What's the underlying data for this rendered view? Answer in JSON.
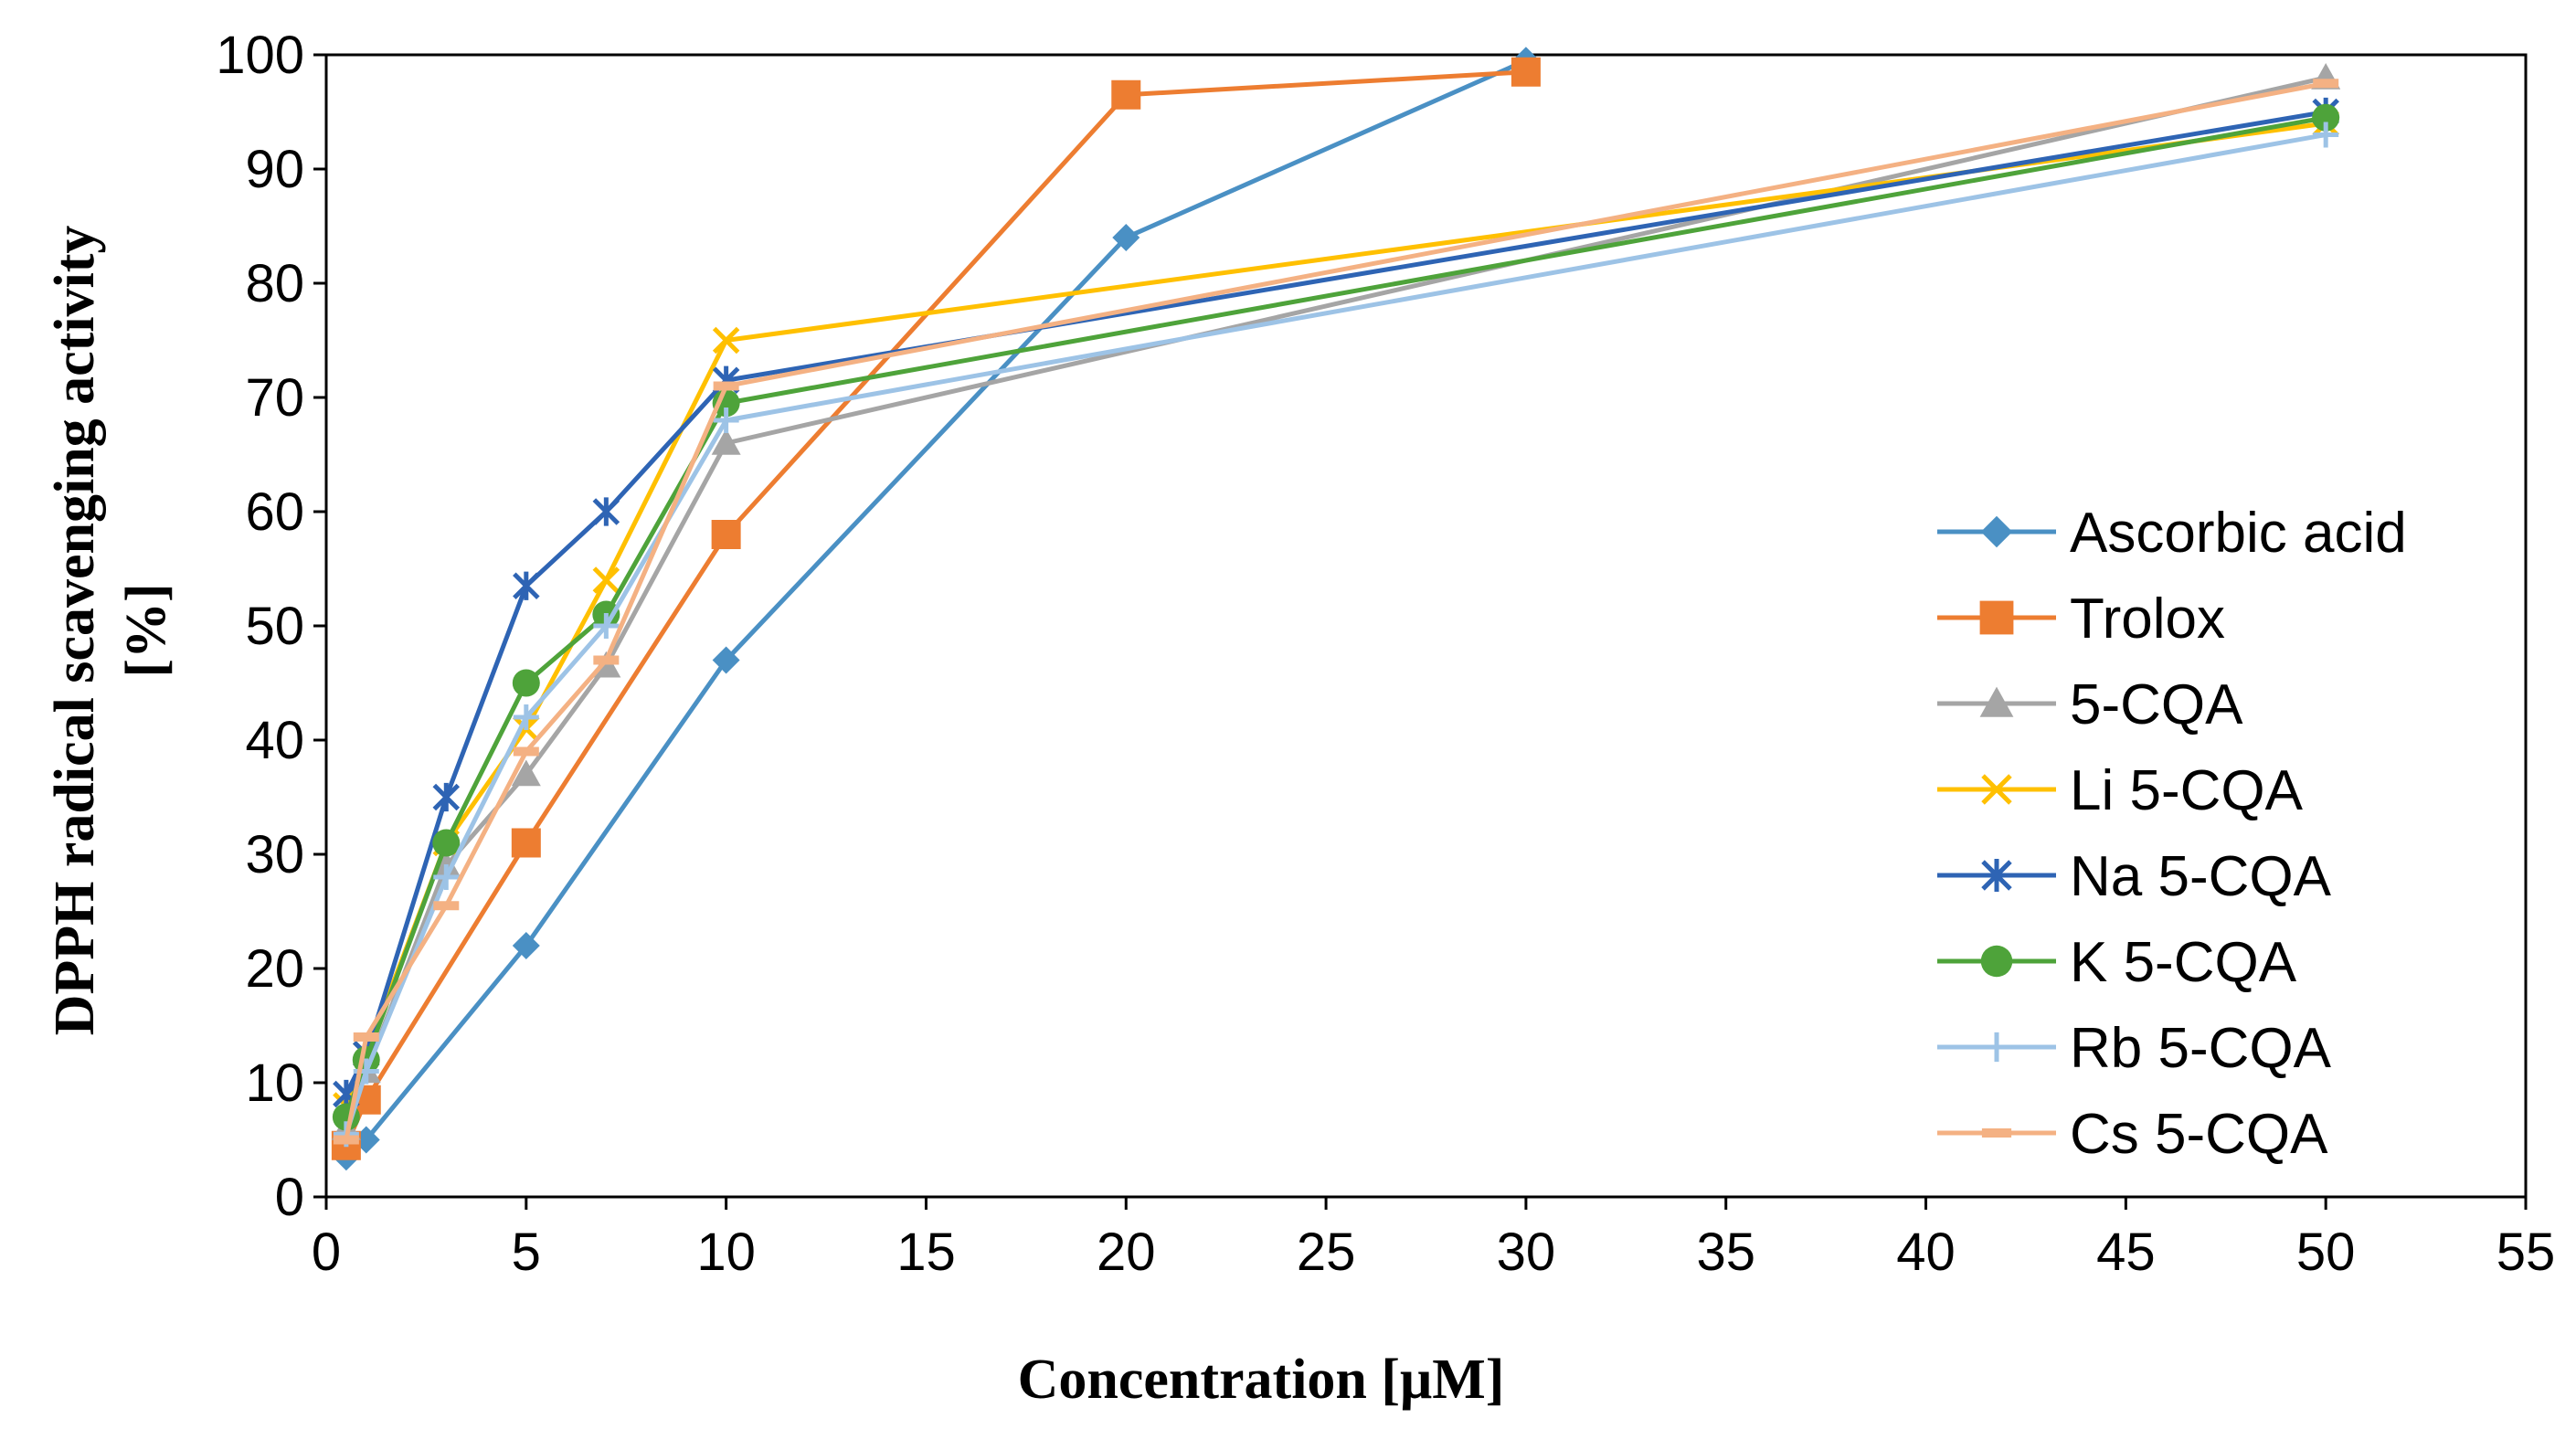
{
  "chart_data": {
    "type": "line",
    "title": "",
    "xlabel": "Concentration [μM]",
    "ylabel_lines": [
      "DPPH radical scavenging activity",
      "[%]"
    ],
    "xlim": [
      0,
      55
    ],
    "ylim": [
      0,
      100
    ],
    "xticks": [
      0,
      5,
      10,
      15,
      20,
      25,
      30,
      35,
      40,
      45,
      50,
      55
    ],
    "yticks": [
      0,
      10,
      20,
      30,
      40,
      50,
      60,
      70,
      80,
      90,
      100
    ],
    "grid": false,
    "legend_position": "right",
    "series": [
      {
        "name": "Ascorbic acid",
        "color": "#4a90c4",
        "marker": "diamond",
        "x": [
          0.5,
          1,
          5,
          10,
          20,
          30
        ],
        "y": [
          3.5,
          5,
          22,
          47,
          84,
          99.5
        ]
      },
      {
        "name": "Trolox",
        "color": "#ed7d31",
        "marker": "square",
        "x": [
          0.5,
          1,
          5,
          10,
          20,
          30
        ],
        "y": [
          4.5,
          8.5,
          31,
          58,
          96.5,
          98.5
        ]
      },
      {
        "name": "5-CQA",
        "color": "#a5a5a5",
        "marker": "triangle",
        "x": [
          0.5,
          1,
          3,
          5,
          7,
          10,
          50
        ],
        "y": [
          6,
          11,
          29,
          37,
          46.5,
          66,
          98
        ]
      },
      {
        "name": "Li 5-CQA",
        "color": "#ffc000",
        "marker": "x",
        "x": [
          0.5,
          1,
          3,
          5,
          7,
          10,
          50
        ],
        "y": [
          8,
          12.5,
          31,
          41,
          54,
          75,
          94
        ]
      },
      {
        "name": "Na 5-CQA",
        "color": "#2e64b4",
        "marker": "star",
        "x": [
          0.5,
          1,
          3,
          5,
          7,
          10,
          50
        ],
        "y": [
          9,
          12.5,
          35,
          53.5,
          60,
          71.5,
          95
        ]
      },
      {
        "name": "K 5-CQA",
        "color": "#4ea33a",
        "marker": "circle",
        "x": [
          0.5,
          1,
          3,
          5,
          7,
          10,
          50
        ],
        "y": [
          7,
          12,
          31,
          45,
          51,
          69.5,
          94.5
        ]
      },
      {
        "name": "Rb 5-CQA",
        "color": "#9dc3e6",
        "marker": "plus",
        "x": [
          0.5,
          1,
          3,
          5,
          7,
          10,
          50
        ],
        "y": [
          5.5,
          11,
          28,
          42,
          50,
          68,
          93
        ]
      },
      {
        "name": "Cs 5-CQA",
        "color": "#f4b183",
        "marker": "dash",
        "x": [
          0.5,
          1,
          3,
          5,
          7,
          10,
          50
        ],
        "y": [
          5,
          14,
          25.5,
          39,
          47,
          71,
          97.5
        ]
      }
    ]
  }
}
